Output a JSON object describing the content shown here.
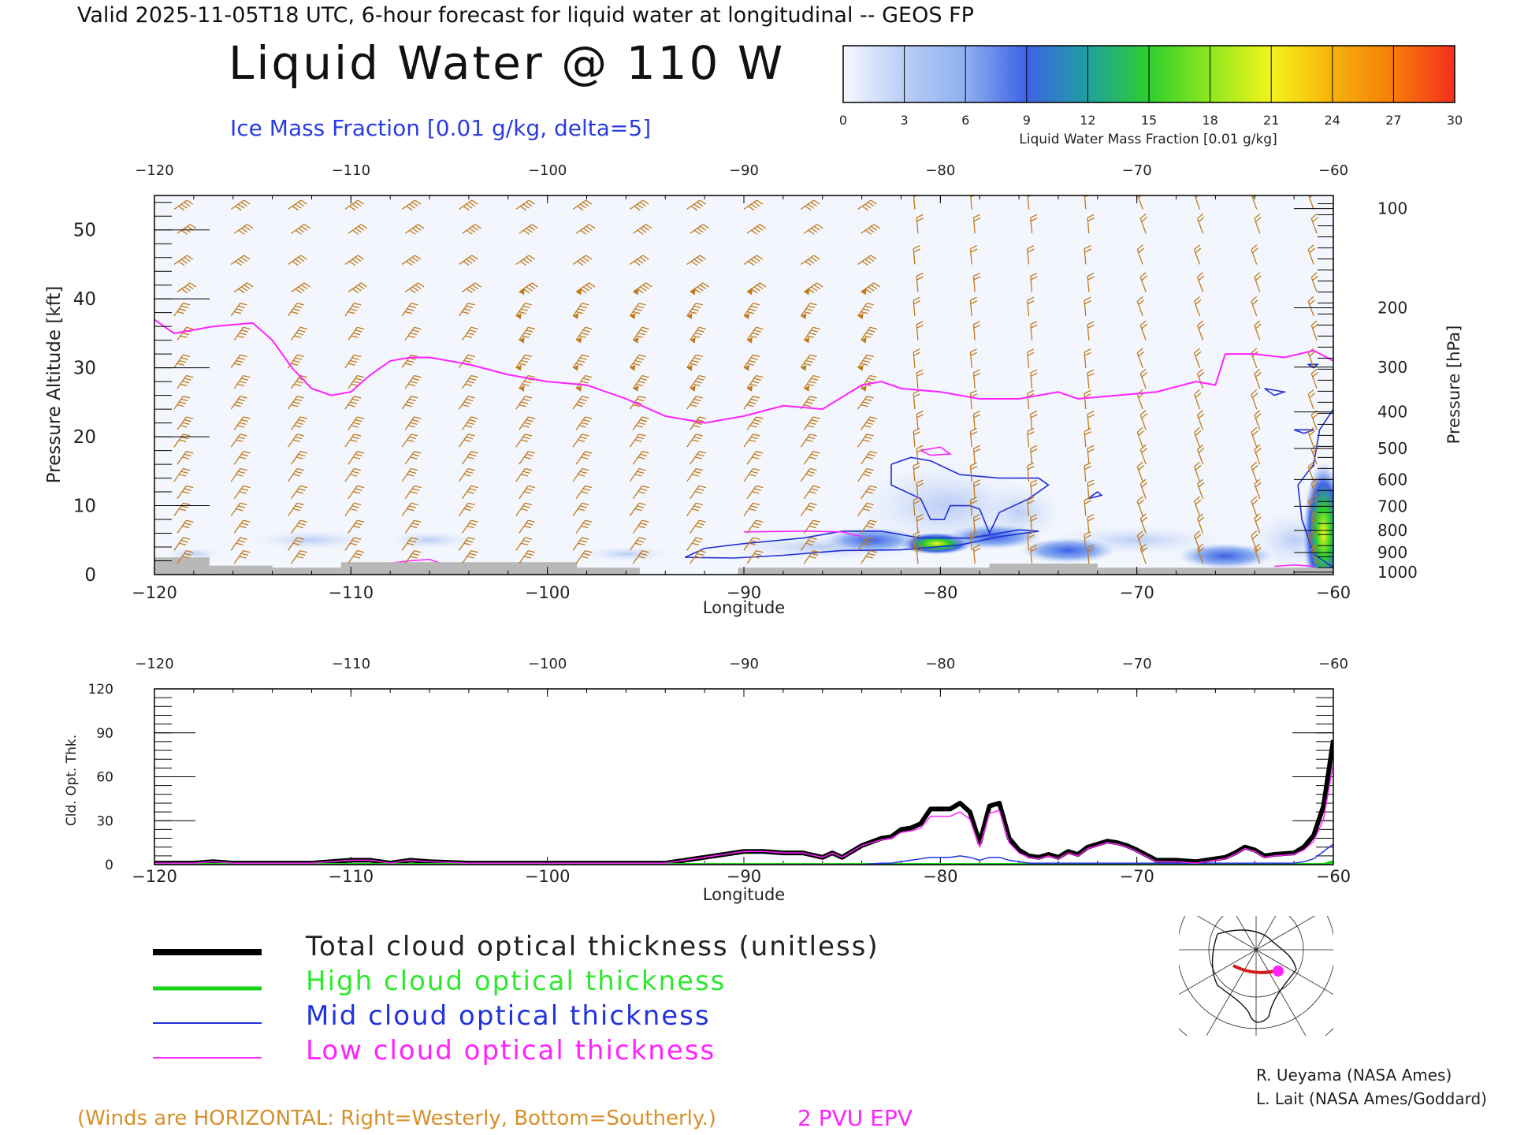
{
  "header": {
    "valid_line": "Valid 2025-11-05T18 UTC, 6-hour forecast for liquid water at longitudinal -- GEOS FP",
    "title": "Liquid Water @ 110 W",
    "subtitle": "Ice Mass Fraction [0.01 g/kg, delta=5]"
  },
  "colorbar": {
    "ticks": [
      "0",
      "3",
      "6",
      "9",
      "12",
      "15",
      "18",
      "21",
      "24",
      "27",
      "30"
    ],
    "label": "Liquid Water Mass Fraction [0.01 g/kg]",
    "colors": [
      "#f6f8fe",
      "#b9cdf6",
      "#8eb0f0",
      "#3d62e6",
      "#1fa0a0",
      "#2ecf2e",
      "#8ee81e",
      "#f4f41c",
      "#f6b20a",
      "#f67c0a",
      "#f4301c"
    ]
  },
  "colors": {
    "wind_barbs": "#c07a1a",
    "epv_line": "#ff22ff",
    "ice_contour": "#1e2fd6",
    "terrain": "#b8b8b8"
  },
  "chart_data": [
    {
      "type": "heatmap",
      "name_hint": "cross-section",
      "xlabel": "Longitude",
      "ylabel_left": "Pressure Altitude [kft]",
      "ylabel_right": "Pressure [hPa]",
      "xlim": [
        -120,
        -60
      ],
      "ylim": [
        0,
        55
      ],
      "x_ticks": [
        "-120",
        "-110",
        "-100",
        "-90",
        "-80",
        "-70",
        "-60"
      ],
      "y_ticks": [
        "0",
        "10",
        "20",
        "30",
        "40",
        "50"
      ],
      "pressure_ticks": [
        {
          "label": "100",
          "kft": 53.1
        },
        {
          "label": "200",
          "kft": 38.7
        },
        {
          "label": "300",
          "kft": 30.1
        },
        {
          "label": "400",
          "kft": 23.6
        },
        {
          "label": "500",
          "kft": 18.3
        },
        {
          "label": "600",
          "kft": 13.8
        },
        {
          "label": "700",
          "kft": 9.9
        },
        {
          "label": "800",
          "kft": 6.4
        },
        {
          "label": "900",
          "kft": 3.2
        },
        {
          "label": "1000",
          "kft": 0.36
        }
      ],
      "epv_2pvu": {
        "lon": [
          -120,
          -119,
          -117,
          -115,
          -114,
          -113,
          -112,
          -111,
          -110,
          -109,
          -108,
          -107,
          -106,
          -104,
          -102,
          -100,
          -98,
          -96,
          -94,
          -92,
          -90,
          -88,
          -86,
          -84,
          -83,
          -82,
          -80,
          -78,
          -76,
          -74,
          -73,
          -71,
          -69,
          -67,
          -66,
          -65.5,
          -64,
          -62.5,
          -61,
          -60
        ],
        "kft": [
          37,
          35,
          36,
          36.5,
          34,
          30,
          27,
          26,
          26.5,
          29,
          31,
          31.5,
          31.5,
          30.5,
          29,
          28,
          27.5,
          25.5,
          23,
          22,
          23,
          24.5,
          24,
          27.5,
          28,
          27,
          26.5,
          25.5,
          25.5,
          26.5,
          25.5,
          26,
          26.5,
          28,
          27.5,
          32,
          32,
          31.5,
          32.5,
          31
        ]
      },
      "liquid_water_patches": [
        {
          "lon": -80.2,
          "kft": 4.5,
          "value": 16
        },
        {
          "lon": -77.3,
          "kft": 5.5,
          "value": 13
        },
        {
          "lon": -83.5,
          "kft": 5.0,
          "value": 9
        },
        {
          "lon": -79.5,
          "kft": 10,
          "value": 6
        },
        {
          "lon": -73.5,
          "kft": 3.5,
          "value": 8
        },
        {
          "lon": -65.5,
          "kft": 2.7,
          "value": 8
        },
        {
          "lon": -60.5,
          "kft": 6,
          "value": 16
        }
      ]
    },
    {
      "type": "line",
      "name_hint": "cloud-optical-thickness",
      "xlabel": "Longitude",
      "ylabel": "Cld. Opt. Thk.",
      "xlim": [
        -120,
        -60
      ],
      "ylim": [
        0,
        120
      ],
      "x_ticks": [
        "-120",
        "-110",
        "-100",
        "-90",
        "-80",
        "-70",
        "-60"
      ],
      "y_ticks": [
        "0",
        "30",
        "60",
        "90",
        "120"
      ],
      "x": [
        -120,
        -118,
        -117,
        -116,
        -114,
        -112,
        -110,
        -109,
        -108,
        -107,
        -106,
        -104,
        -102,
        -100,
        -98,
        -96,
        -94,
        -93,
        -92,
        -91,
        -90,
        -89,
        -88,
        -87,
        -86,
        -85.5,
        -85,
        -84,
        -83,
        -82.5,
        -82,
        -81.5,
        -81,
        -80.5,
        -80,
        -79.5,
        -79,
        -78.5,
        -78,
        -77.5,
        -77,
        -76.5,
        -76,
        -75.5,
        -75,
        -74.5,
        -74,
        -73.5,
        -73,
        -72.5,
        -72,
        -71.5,
        -71,
        -70.5,
        -70,
        -69,
        -68,
        -67,
        -66,
        -65.5,
        -65,
        -64.5,
        -64,
        -63.5,
        -63,
        -62,
        -61.5,
        -61,
        -60.5,
        -60
      ],
      "series": [
        {
          "name": "Total cloud optical thickness (unitless)",
          "values": [
            1,
            1,
            2,
            1,
            1,
            1,
            3,
            3,
            1,
            3,
            2,
            1,
            1,
            1,
            1,
            1,
            1,
            3,
            5,
            7,
            9,
            9,
            8,
            8,
            5,
            8,
            5,
            13,
            18,
            19,
            24,
            25,
            28,
            38,
            38,
            38,
            42,
            36,
            15,
            40,
            42,
            18,
            10,
            6,
            5,
            7,
            5,
            9,
            7,
            12,
            14,
            16,
            15,
            13,
            10,
            3,
            3,
            2,
            4,
            5,
            8,
            12,
            10,
            6,
            7,
            8,
            12,
            20,
            40,
            85
          ]
        },
        {
          "name": "High cloud optical thickness",
          "values": [
            0,
            0,
            0,
            0,
            0,
            0,
            0,
            0,
            0,
            0,
            0,
            0,
            0,
            0,
            0,
            0,
            0,
            0,
            0,
            0,
            0,
            0,
            0,
            0,
            0,
            0,
            0,
            0,
            0,
            0,
            0,
            0,
            0,
            0,
            0,
            0,
            0,
            0,
            0,
            0,
            0,
            0,
            0,
            0,
            0,
            0,
            0,
            0,
            0,
            0,
            0,
            0,
            0,
            0,
            0,
            0,
            0,
            0,
            0,
            0,
            0,
            0,
            0,
            0,
            0,
            0,
            0,
            0,
            0,
            2
          ]
        },
        {
          "name": "Mid cloud optical thickness",
          "values": [
            0,
            0,
            0,
            0,
            0,
            0,
            0,
            0,
            0,
            0,
            0,
            0,
            0,
            0,
            0,
            0,
            0,
            0,
            0,
            0,
            0,
            0,
            0,
            0,
            0,
            0,
            0,
            0,
            1,
            1,
            2,
            3,
            4,
            5,
            5,
            5,
            6,
            5,
            3,
            5,
            5,
            3,
            2,
            1,
            1,
            1,
            1,
            1,
            1,
            1,
            1,
            1,
            1,
            1,
            1,
            1,
            1,
            1,
            1,
            1,
            1,
            1,
            1,
            1,
            1,
            1,
            2,
            4,
            9,
            14
          ]
        },
        {
          "name": "Low cloud optical thickness",
          "values": [
            1,
            1,
            2,
            1,
            1,
            1,
            3,
            3,
            1,
            3,
            2,
            1,
            1,
            1,
            1,
            1,
            1,
            3,
            5,
            7,
            9,
            9,
            8,
            8,
            5,
            8,
            5,
            13,
            17,
            18,
            22,
            23,
            25,
            33,
            33,
            33,
            36,
            31,
            12,
            35,
            37,
            15,
            8,
            5,
            4,
            6,
            4,
            8,
            6,
            11,
            13,
            15,
            14,
            12,
            9,
            2,
            2,
            1,
            3,
            4,
            7,
            11,
            9,
            5,
            6,
            7,
            10,
            16,
            31,
            69
          ]
        }
      ]
    }
  ],
  "legend": {
    "total": "Total cloud optical thickness (unitless)",
    "high": "High cloud optical thickness",
    "mid": "Mid cloud optical thickness",
    "low": "Low cloud optical thickness",
    "colors": {
      "total": "#000000",
      "high": "#18d218",
      "mid": "#2233dd",
      "low": "#ff22ff"
    }
  },
  "footer": {
    "winds_note": "(Winds are HORIZONTAL: Right=Westerly, Bottom=Southerly.)",
    "epv_label": "2 PVU EPV",
    "credit1": "R. Ueyama (NASA Ames)",
    "credit2": "L. Lait (NASA Ames/Goddard)"
  },
  "inset_map": {
    "marker_color": "#ff22ff",
    "section_color": "#d41c1c"
  }
}
